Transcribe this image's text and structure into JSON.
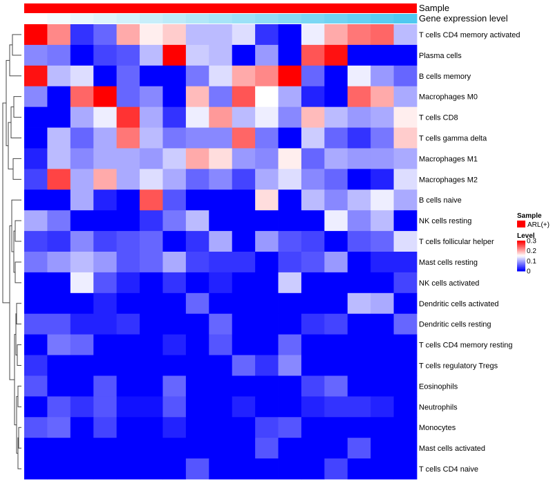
{
  "chart_data": {
    "type": "heatmap",
    "title": "",
    "annotations": {
      "sample_track_label": "Sample",
      "gene_track_label": "Gene expression level",
      "sample_color": "#ff0000",
      "gene_gradient": [
        "#ffffff",
        "#4fc9f0"
      ]
    },
    "color_scale": {
      "min": 0,
      "mid": 0.15,
      "max": 0.3,
      "low_color": "#0000ff",
      "mid_color": "#ffffff",
      "high_color": "#ff0000"
    },
    "legend": {
      "sample_title": "Sample",
      "sample_entry": "ARL(+)",
      "level_title": "Level",
      "ticks": [
        "0.3",
        "0.2",
        "0.1",
        "0"
      ],
      "tick_values": [
        0.3,
        0.2,
        0.1,
        0
      ]
    },
    "n_columns": 16,
    "rows": [
      {
        "label": "T cells CD4 memory activated",
        "values": [
          0.3,
          0.22,
          0.03,
          0.06,
          0.2,
          0.16,
          0.18,
          0.11,
          0.11,
          0.13,
          0.03,
          0.0,
          0.14,
          0.2,
          0.23,
          0.24,
          0.11
        ]
      },
      {
        "label": "Plasma cells",
        "values": [
          0.08,
          0.07,
          0.0,
          0.04,
          0.05,
          0.11,
          0.3,
          0.12,
          0.11,
          0.0,
          0.09,
          0.0,
          0.25,
          0.29,
          0.0,
          0.0,
          0.0
        ]
      },
      {
        "label": "B cells memory",
        "values": [
          0.29,
          0.11,
          0.13,
          0.0,
          0.06,
          0.0,
          0.0,
          0.07,
          0.13,
          0.2,
          0.22,
          0.3,
          0.06,
          0.0,
          0.14,
          0.09,
          0.06
        ]
      },
      {
        "label": "Macrophages M0",
        "values": [
          0.08,
          0.0,
          0.24,
          0.3,
          0.06,
          0.08,
          0.0,
          0.19,
          0.07,
          0.25,
          0.15,
          0.1,
          0.02,
          0.0,
          0.24,
          0.2,
          0.1
        ]
      },
      {
        "label": "T cells CD8",
        "values": [
          0.0,
          0.0,
          0.1,
          0.14,
          0.27,
          0.1,
          0.03,
          0.14,
          0.21,
          0.11,
          0.14,
          0.08,
          0.19,
          0.11,
          0.09,
          0.1,
          0.16
        ]
      },
      {
        "label": "T cells gamma delta",
        "values": [
          0.0,
          0.11,
          0.06,
          0.1,
          0.23,
          0.11,
          0.07,
          0.08,
          0.08,
          0.24,
          0.07,
          0.0,
          0.12,
          0.06,
          0.03,
          0.07,
          0.18
        ]
      },
      {
        "label": "Macrophages M1",
        "values": [
          0.02,
          0.11,
          0.08,
          0.1,
          0.1,
          0.09,
          0.12,
          0.2,
          0.17,
          0.09,
          0.08,
          0.16,
          0.06,
          0.1,
          0.09,
          0.09,
          0.1
        ]
      },
      {
        "label": "Macrophages M2",
        "values": [
          0.04,
          0.26,
          0.1,
          0.2,
          0.1,
          0.13,
          0.1,
          0.06,
          0.08,
          0.04,
          0.1,
          0.13,
          0.08,
          0.06,
          0.0,
          0.02,
          0.13
        ]
      },
      {
        "label": "B cells naive",
        "values": [
          0.0,
          0.0,
          0.1,
          0.02,
          0.0,
          0.25,
          0.05,
          0.0,
          0.0,
          0.0,
          0.17,
          0.0,
          0.11,
          0.08,
          0.11,
          0.14,
          0.1
        ]
      },
      {
        "label": "NK cells resting",
        "values": [
          0.1,
          0.07,
          0.0,
          0.0,
          0.0,
          0.03,
          0.07,
          0.11,
          0.0,
          0.0,
          0.0,
          0.0,
          0.0,
          0.14,
          0.08,
          0.11,
          0.0
        ]
      },
      {
        "label": "T cells follicular helper",
        "values": [
          0.04,
          0.03,
          0.08,
          0.04,
          0.05,
          0.06,
          0.0,
          0.03,
          0.1,
          0.0,
          0.09,
          0.05,
          0.04,
          0.0,
          0.05,
          0.06,
          0.13
        ]
      },
      {
        "label": "Mast cells resting",
        "values": [
          0.07,
          0.09,
          0.11,
          0.09,
          0.05,
          0.06,
          0.1,
          0.04,
          0.03,
          0.03,
          0.0,
          0.04,
          0.05,
          0.09,
          0.0,
          0.02,
          0.02
        ]
      },
      {
        "label": "NK cells activated",
        "values": [
          0.0,
          0.0,
          0.14,
          0.05,
          0.02,
          0.0,
          0.03,
          0.0,
          0.02,
          0.0,
          0.0,
          0.12,
          0.0,
          0.0,
          0.0,
          0.0,
          0.04
        ]
      },
      {
        "label": "Dendritic cells activated",
        "values": [
          0.0,
          0.0,
          0.0,
          0.02,
          0.0,
          0.0,
          0.0,
          0.06,
          0.0,
          0.0,
          0.0,
          0.0,
          0.0,
          0.0,
          0.11,
          0.1,
          0.0
        ]
      },
      {
        "label": "Dendritic cells resting",
        "values": [
          0.05,
          0.05,
          0.02,
          0.02,
          0.03,
          0.0,
          0.0,
          0.0,
          0.06,
          0.0,
          0.0,
          0.0,
          0.03,
          0.04,
          0.0,
          0.0,
          0.06
        ]
      },
      {
        "label": "T cells CD4 memory resting",
        "values": [
          0.0,
          0.07,
          0.06,
          0.0,
          0.0,
          0.0,
          0.02,
          0.0,
          0.05,
          0.0,
          0.0,
          0.06,
          0.0,
          0.0,
          0.0,
          0.0,
          0.0
        ]
      },
      {
        "label": "T cells regulatory  Tregs",
        "values": [
          0.03,
          0.0,
          0.0,
          0.0,
          0.0,
          0.0,
          0.0,
          0.0,
          0.0,
          0.06,
          0.03,
          0.08,
          0.0,
          0.0,
          0.0,
          0.0,
          0.0
        ]
      },
      {
        "label": "Eosinophils",
        "values": [
          0.05,
          0.0,
          0.0,
          0.05,
          0.0,
          0.0,
          0.06,
          0.0,
          0.0,
          0.0,
          0.0,
          0.0,
          0.04,
          0.06,
          0.0,
          0.0,
          0.0
        ]
      },
      {
        "label": "Neutrophils",
        "values": [
          0.0,
          0.05,
          0.03,
          0.05,
          0.01,
          0.01,
          0.05,
          0.0,
          0.0,
          0.02,
          0.0,
          0.0,
          0.02,
          0.03,
          0.03,
          0.02,
          0.0
        ]
      },
      {
        "label": "Monocytes",
        "values": [
          0.05,
          0.06,
          0.0,
          0.04,
          0.0,
          0.0,
          0.02,
          0.0,
          0.0,
          0.0,
          0.04,
          0.05,
          0.0,
          0.0,
          0.0,
          0.0,
          0.0
        ]
      },
      {
        "label": "Mast cells activated",
        "values": [
          0.0,
          0.0,
          0.0,
          0.0,
          0.0,
          0.0,
          0.0,
          0.0,
          0.0,
          0.0,
          0.05,
          0.0,
          0.0,
          0.0,
          0.05,
          0.0,
          0.0
        ]
      },
      {
        "label": "T cells CD4 naive",
        "values": [
          0.0,
          0.0,
          0.0,
          0.0,
          0.0,
          0.0,
          0.0,
          0.05,
          0.0,
          0.0,
          0.0,
          0.0,
          0.0,
          0.04,
          0.0,
          0.0,
          0.0
        ]
      }
    ]
  }
}
